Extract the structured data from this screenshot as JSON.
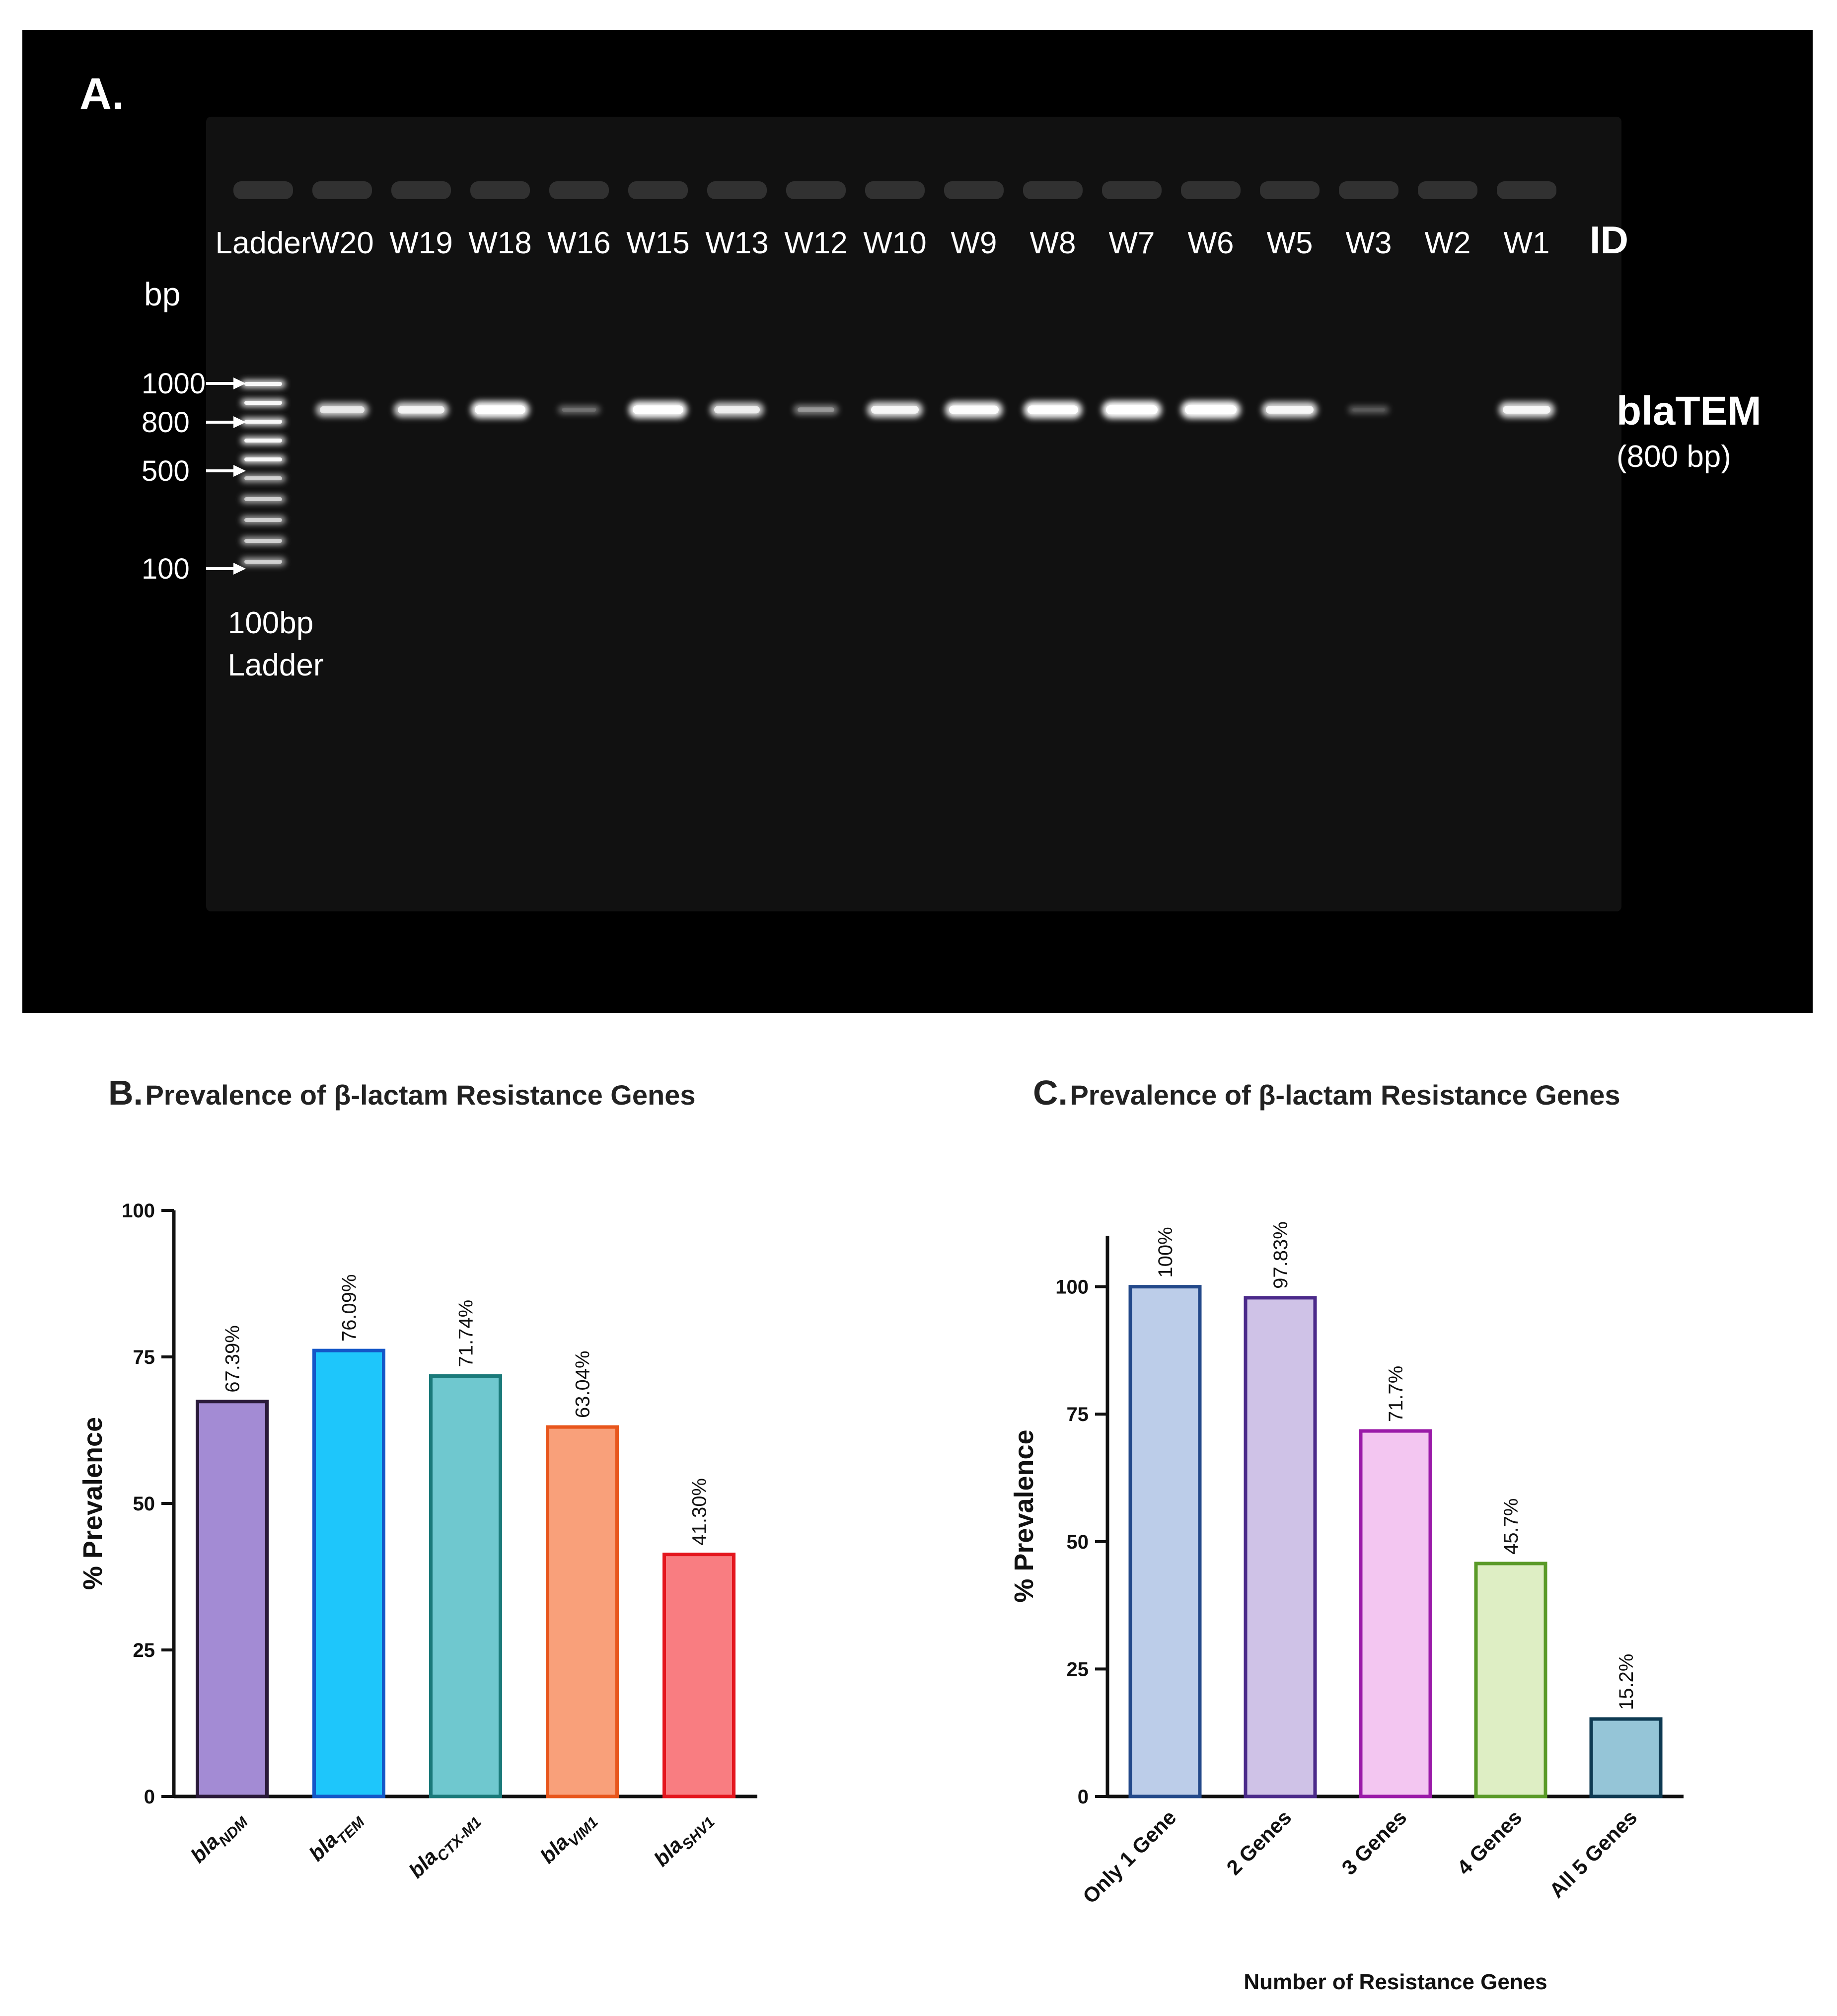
{
  "panel_a": {
    "letter": "A.",
    "lanes": [
      "Ladder",
      "W20",
      "W19",
      "W18",
      "W16",
      "W15",
      "W13",
      "W12",
      "W10",
      "W9",
      "W8",
      "W7",
      "W6",
      "W5",
      "W3",
      "W2",
      "W1"
    ],
    "lane_band_intensity": [
      0,
      0.65,
      0.75,
      0.95,
      0.12,
      0.95,
      0.7,
      0.25,
      0.8,
      0.9,
      0.95,
      1.0,
      1.0,
      0.8,
      0.05,
      0.0,
      0.8
    ],
    "id_label": "ID",
    "bp_label": "bp",
    "ladder_markers": [
      "1000",
      "800",
      "500",
      "100"
    ],
    "ladder_caption_line1": "100bp",
    "ladder_caption_line2": "Ladder",
    "gene_label": "blaTEM",
    "gene_size": "(800 bp)",
    "colors": {
      "background": "#000000",
      "gel": "#111111",
      "band": "#ffffff",
      "text": "#ffffff"
    }
  },
  "panel_b": {
    "letter": "B.",
    "title": "Prevalence of β-lactam Resistance Genes",
    "chart_data": {
      "type": "bar",
      "title": "Prevalence of β-lactam Resistance Genes",
      "ylabel": "% Prevalence",
      "xlabel": "",
      "ylim": [
        0,
        100
      ],
      "yticks": [
        0,
        25,
        50,
        75,
        100
      ],
      "categories": [
        {
          "base": "bla",
          "sub": "NDM"
        },
        {
          "base": "bla",
          "sub": "TEM"
        },
        {
          "base": "bla",
          "sub": "CTX-M1"
        },
        {
          "base": "bla",
          "sub": "VIM1"
        },
        {
          "base": "bla",
          "sub": "SHV1"
        }
      ],
      "values": [
        67.39,
        76.09,
        71.74,
        63.04,
        41.3
      ],
      "data_labels": [
        "67.39%",
        "76.09%",
        "71.74%",
        "63.04%",
        "41.30%"
      ],
      "fill_colors": [
        "#a38bd4",
        "#1ec6fb",
        "#6fc8cf",
        "#f9a07a",
        "#f97d81"
      ],
      "stroke_colors": [
        "#2a1a3a",
        "#1457c8",
        "#1a7a7a",
        "#e8561c",
        "#e4161e"
      ],
      "grid": false
    }
  },
  "panel_c": {
    "letter": "C.",
    "title": "Prevalence of β-lactam Resistance Genes",
    "chart_data": {
      "type": "bar",
      "title": "Prevalence of β-lactam Resistance Genes",
      "ylabel": "% Prevalence",
      "xlabel": "Number of Resistance Genes",
      "ylim": [
        0,
        110
      ],
      "yticks": [
        0,
        25,
        50,
        75,
        100
      ],
      "categories": [
        "Only 1 Gene",
        "2 Genes",
        "3 Genes",
        "4 Genes",
        "All 5 Genes"
      ],
      "values": [
        100,
        97.83,
        71.7,
        45.7,
        15.2
      ],
      "data_labels": [
        "100%",
        "97.83%",
        "71.7%",
        "45.7%",
        "15.2%"
      ],
      "fill_colors": [
        "#bccde9",
        "#cfc2e7",
        "#f3c6f1",
        "#deeec4",
        "#95c5d7"
      ],
      "stroke_colors": [
        "#23498a",
        "#4b2a8a",
        "#9a1aa8",
        "#5a9a28",
        "#0e3a52"
      ],
      "grid": false
    }
  }
}
